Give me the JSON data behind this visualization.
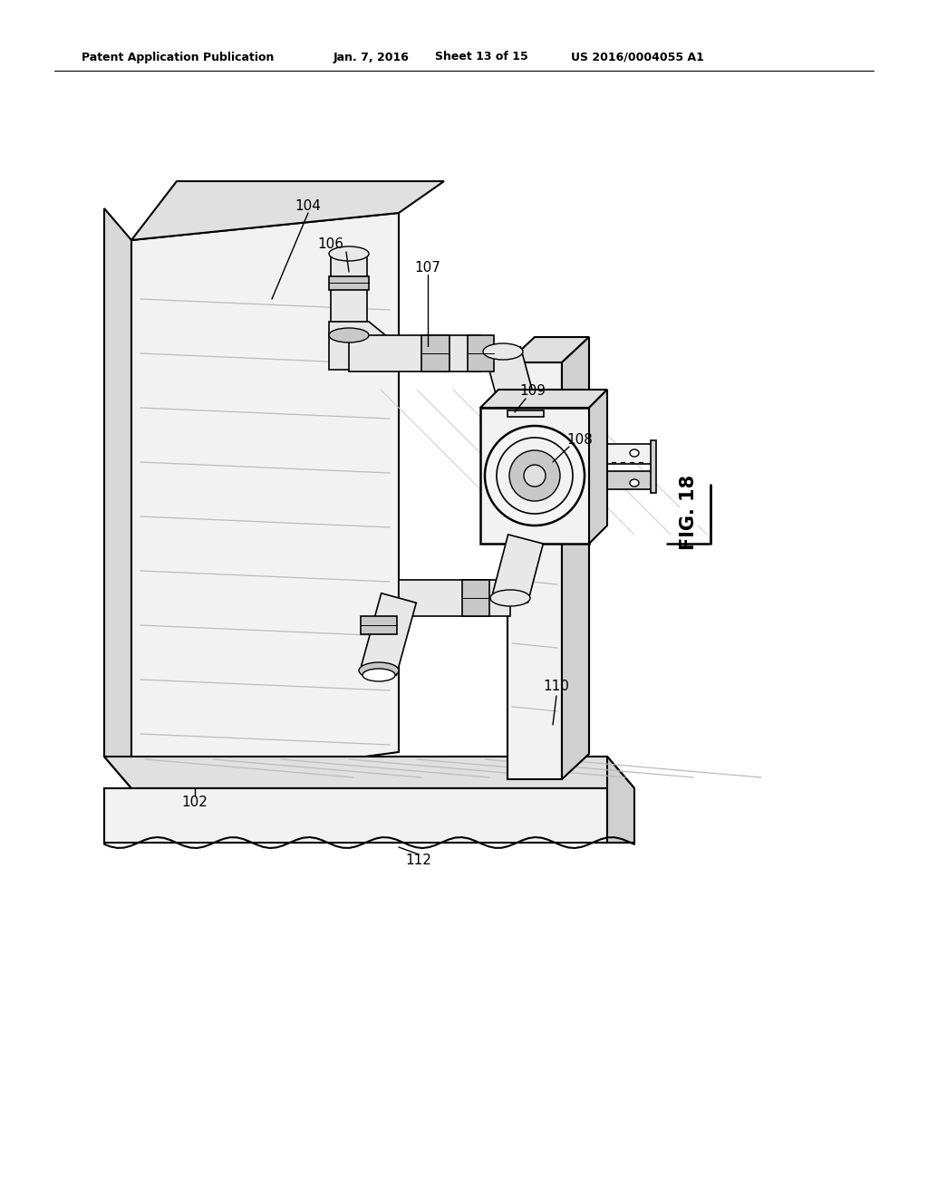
{
  "bg_color": "#ffffff",
  "line_color": "#000000",
  "header_text": "Patent Application Publication",
  "header_date": "Jan. 7, 2016",
  "header_sheet": "Sheet 13 of 15",
  "header_patent": "US 2016/0004055 A1",
  "fig_label": "FIG. 18",
  "gray_panel": "#f2f2f2",
  "gray_top": "#e0e0e0",
  "gray_side": "#d0d0d0",
  "gray_pipe": "#e8e8e8",
  "gray_pipe_dark": "#c8c8c8",
  "gray_shade": "#aaaaaa"
}
